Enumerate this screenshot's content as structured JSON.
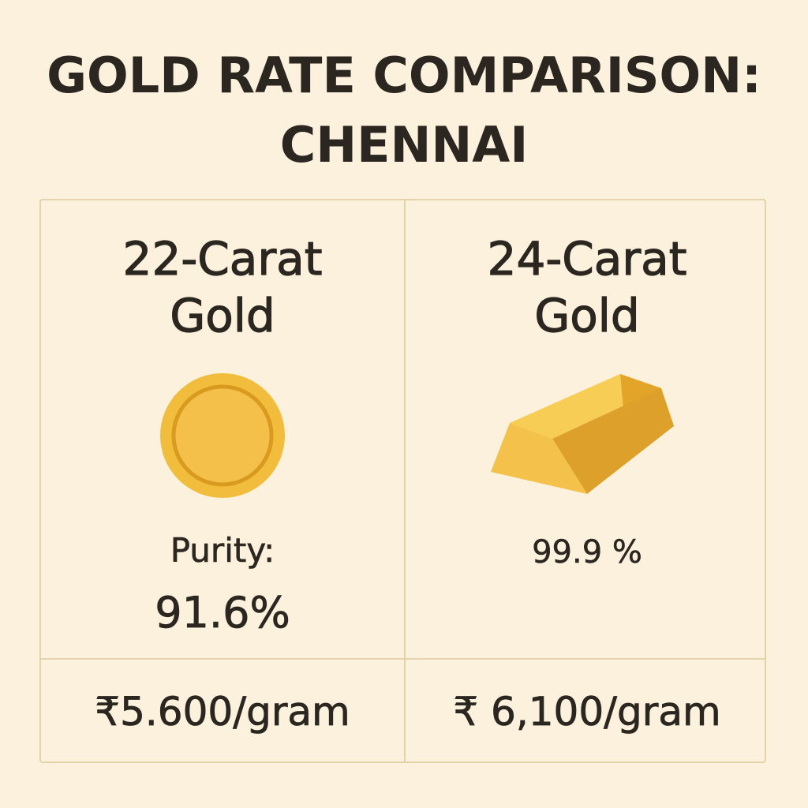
{
  "title": {
    "line1": "GOLD RATE COMPARISON:",
    "line2": "CHENNAI"
  },
  "columns": [
    {
      "heading_line1": "22-Carat",
      "heading_line2": "Gold",
      "icon": "gold-coin-icon",
      "purity_label": "Purity:",
      "purity_value": "91.6%",
      "price": "₹5.600/gram"
    },
    {
      "heading_line1": "24-Carat",
      "heading_line2": "Gold",
      "icon": "gold-bar-icon",
      "purity_value": "99.9 %",
      "price": "₹ 6,100/gram"
    }
  ],
  "colors": {
    "background": "#fbf1dd",
    "text": "#2b2620",
    "border": "#e2d3aa",
    "gold": "#f2bd3c"
  }
}
